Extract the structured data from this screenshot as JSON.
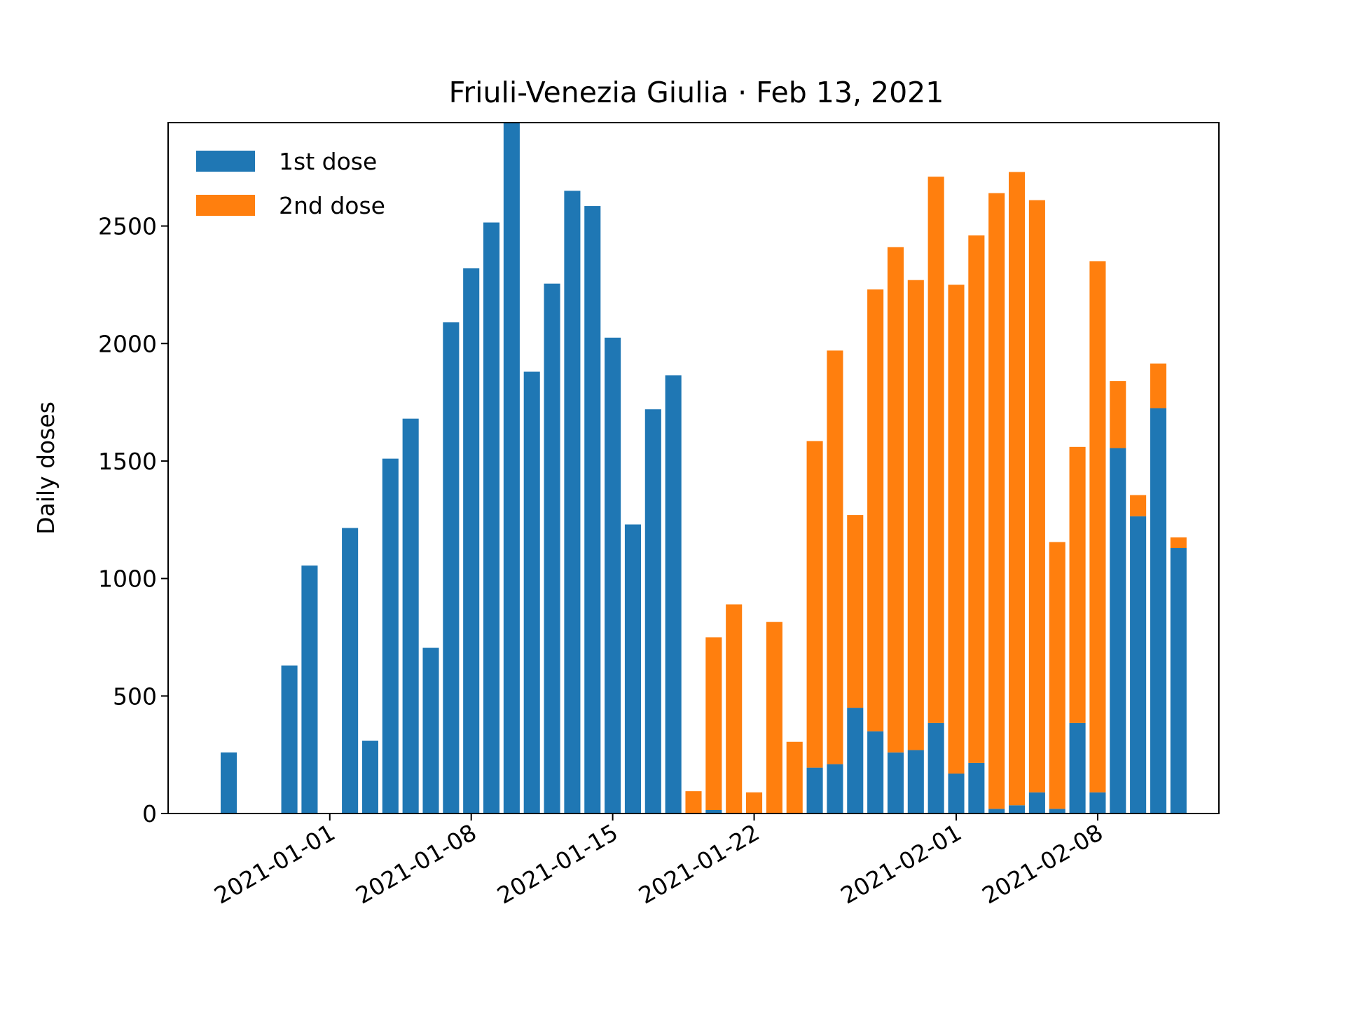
{
  "chart_data": {
    "type": "bar",
    "stacked": true,
    "title": "Friuli-Venezia Giulia · Feb 13, 2021",
    "xlabel": "",
    "ylabel": "Daily doses",
    "ylim": [
      0,
      2940
    ],
    "xlim": [
      "2020-12-24",
      "2021-02-14"
    ],
    "yticks": [
      0,
      500,
      1000,
      1500,
      2000,
      2500
    ],
    "xticks": [
      "2021-01-01",
      "2021-01-08",
      "2021-01-15",
      "2021-01-22",
      "2021-02-01",
      "2021-02-08"
    ],
    "legend": "top-left",
    "grid": false,
    "x": [
      "2020-12-27",
      "2020-12-28",
      "2020-12-29",
      "2020-12-30",
      "2020-12-31",
      "2021-01-01",
      "2021-01-02",
      "2021-01-03",
      "2021-01-04",
      "2021-01-05",
      "2021-01-06",
      "2021-01-07",
      "2021-01-08",
      "2021-01-09",
      "2021-01-10",
      "2021-01-11",
      "2021-01-12",
      "2021-01-13",
      "2021-01-14",
      "2021-01-15",
      "2021-01-16",
      "2021-01-17",
      "2021-01-18",
      "2021-01-19",
      "2021-01-20",
      "2021-01-21",
      "2021-01-22",
      "2021-01-23",
      "2021-01-24",
      "2021-01-25",
      "2021-01-26",
      "2021-01-27",
      "2021-01-28",
      "2021-01-29",
      "2021-01-30",
      "2021-01-31",
      "2021-02-01",
      "2021-02-02",
      "2021-02-03",
      "2021-02-04",
      "2021-02-05",
      "2021-02-06",
      "2021-02-07",
      "2021-02-08",
      "2021-02-09",
      "2021-02-10",
      "2021-02-11",
      "2021-02-12"
    ],
    "series": [
      {
        "name": "1st dose",
        "color": "#1f77b4",
        "values": [
          260,
          0,
          0,
          630,
          1055,
          0,
          1215,
          310,
          1510,
          1680,
          705,
          2090,
          2320,
          2515,
          2940,
          1880,
          2255,
          2650,
          2585,
          2025,
          1230,
          1720,
          1865,
          0,
          15,
          0,
          0,
          0,
          0,
          195,
          210,
          450,
          350,
          260,
          270,
          385,
          170,
          215,
          20,
          35,
          90,
          20,
          385,
          90,
          1555,
          1265,
          1725,
          1130
        ]
      },
      {
        "name": "2nd dose",
        "color": "#ff7f0e",
        "values": [
          0,
          0,
          0,
          0,
          0,
          0,
          0,
          0,
          0,
          0,
          0,
          0,
          0,
          0,
          0,
          0,
          0,
          0,
          0,
          0,
          0,
          0,
          0,
          95,
          735,
          890,
          90,
          815,
          305,
          1390,
          1760,
          820,
          1880,
          2150,
          2000,
          2325,
          2080,
          2245,
          2620,
          2695,
          2520,
          1135,
          1175,
          2260,
          285,
          90,
          190,
          45
        ]
      }
    ]
  }
}
